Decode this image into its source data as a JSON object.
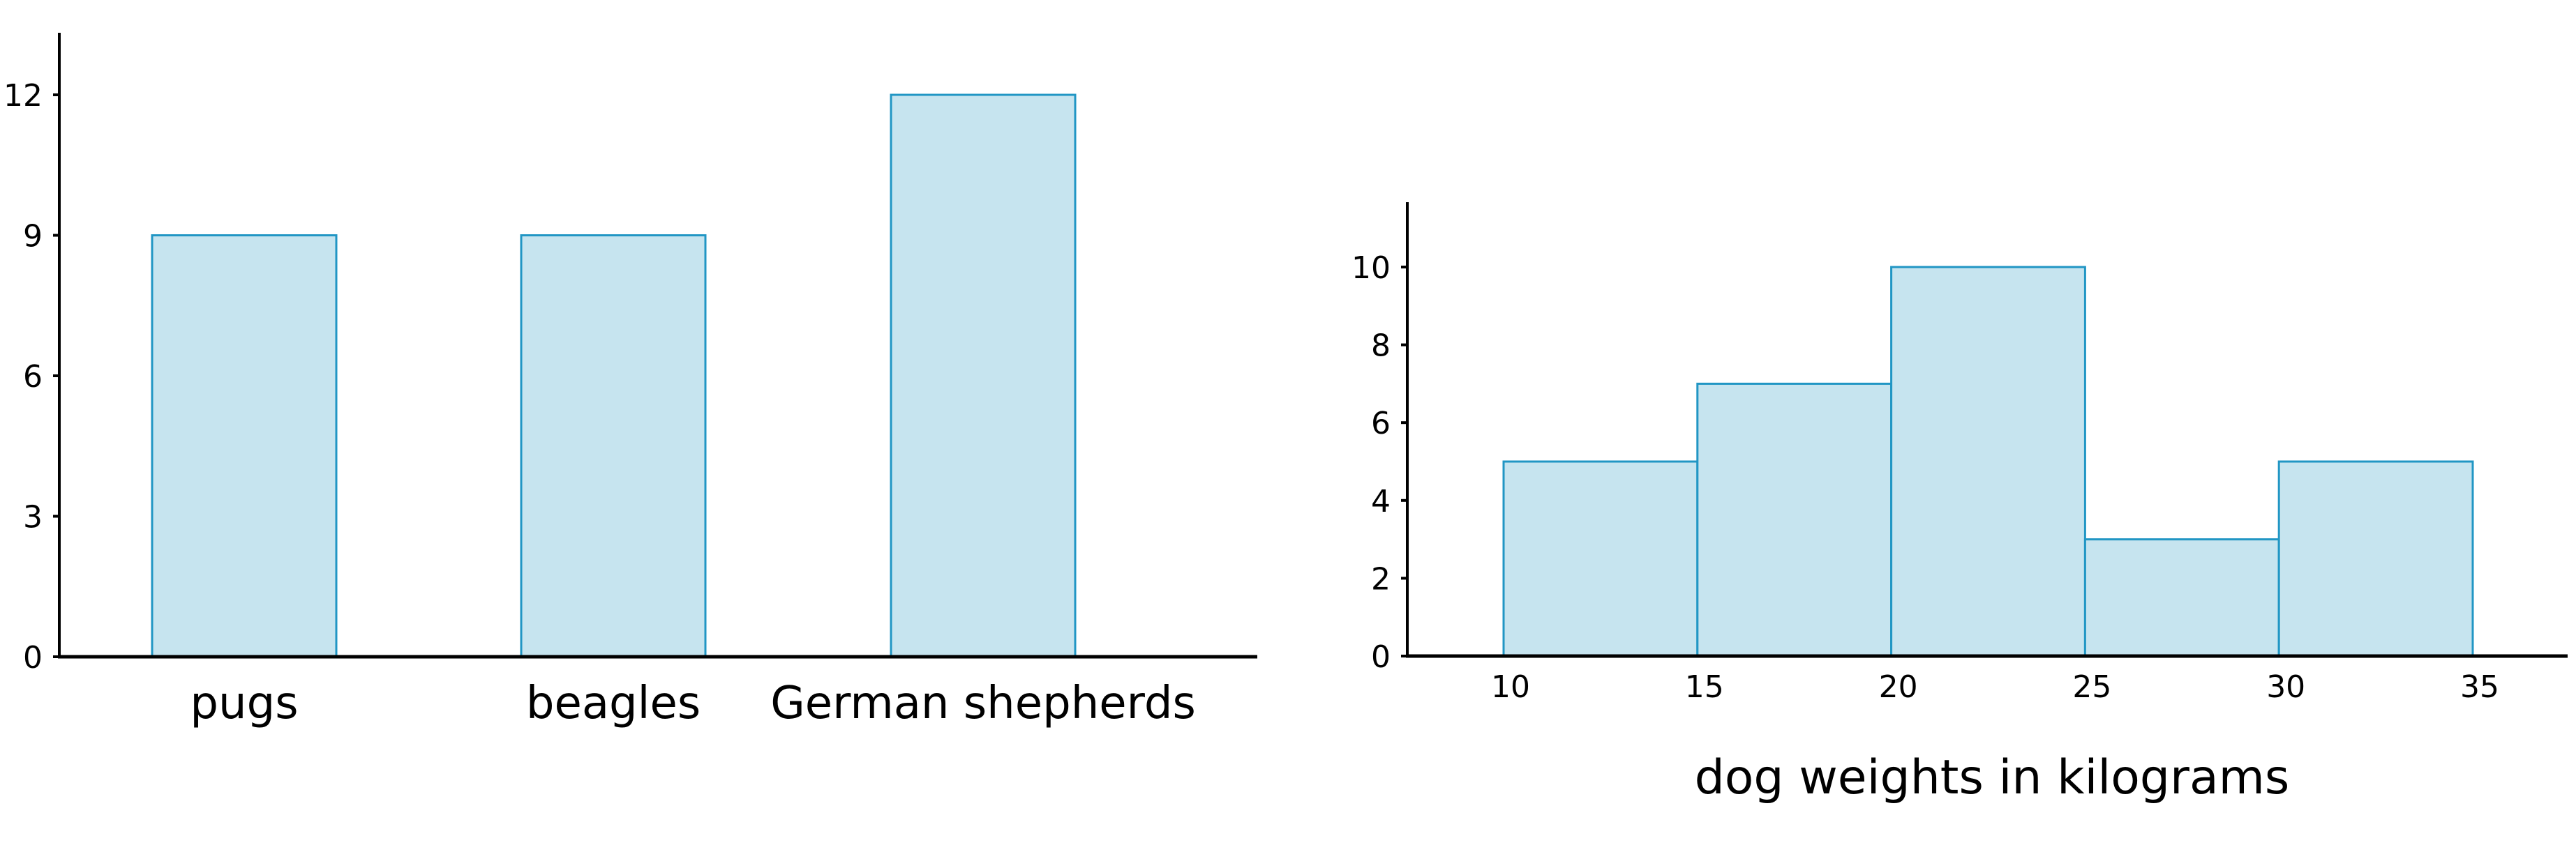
{
  "colors": {
    "bar_fill": "#c6e4ef",
    "bar_stroke": "#2196c4",
    "axis": "#000000"
  },
  "chart_data": [
    {
      "type": "bar",
      "title": "",
      "xlabel": "",
      "ylabel": "",
      "categories": [
        "pugs",
        "beagles",
        "German shepherds"
      ],
      "values": [
        9,
        9,
        12
      ],
      "yticks": [
        "0",
        "3",
        "6",
        "9",
        "12"
      ],
      "ylim": [
        0,
        13
      ],
      "grid": false
    },
    {
      "type": "bar",
      "subtype": "histogram",
      "title": "",
      "xlabel": "dog weights in kilograms",
      "ylabel": "",
      "bins": [
        [
          10,
          15
        ],
        [
          15,
          20
        ],
        [
          20,
          25
        ],
        [
          25,
          30
        ],
        [
          30,
          35
        ]
      ],
      "values": [
        5,
        7,
        10,
        3,
        5
      ],
      "xticks": [
        "10",
        "15",
        "20",
        "25",
        "30",
        "35"
      ],
      "yticks": [
        "0",
        "2",
        "4",
        "6",
        "8",
        "10"
      ],
      "ylim": [
        0,
        11.5
      ],
      "grid": false
    }
  ]
}
